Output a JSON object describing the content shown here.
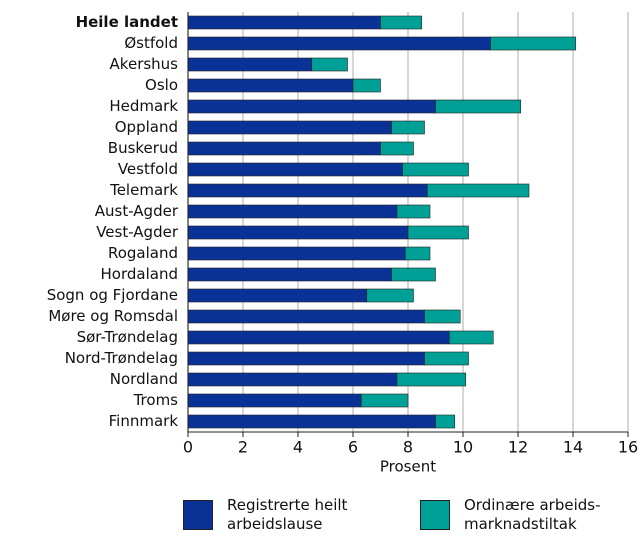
{
  "chart_data": {
    "type": "stacked_barh",
    "x_label": "Prosent",
    "categories": [
      "Heile landet",
      "Østfold",
      "Akershus",
      "Oslo",
      "Hedmark",
      "Oppland",
      "Buskerud",
      "Vestfold",
      "Telemark",
      "Aust-Agder",
      "Vest-Agder",
      "Rogaland",
      "Hordaland",
      "Sogn og Fjordane",
      "Møre og Romsdal",
      "Sør-Trøndelag",
      "Nord-Trøndelag",
      "Nordland",
      "Troms",
      "Finnmark"
    ],
    "series": [
      {
        "name": "Registrerte heilt arbeidslause",
        "color": "#0a3296",
        "values": [
          7.0,
          11.0,
          4.5,
          6.0,
          9.0,
          7.4,
          7.0,
          7.8,
          8.7,
          7.6,
          8.0,
          7.9,
          7.4,
          6.5,
          8.6,
          9.5,
          8.6,
          7.6,
          6.3,
          9.0
        ]
      },
      {
        "name": "Ordinære arbeids-marknadstiltak",
        "color": "#00a096",
        "values": [
          1.5,
          3.1,
          1.3,
          1.0,
          3.1,
          1.2,
          1.2,
          2.4,
          3.7,
          1.2,
          2.2,
          0.9,
          1.6,
          1.7,
          1.3,
          1.6,
          1.6,
          2.5,
          1.7,
          0.7
        ]
      }
    ],
    "xlim": [
      0,
      16
    ],
    "xticks": [
      0,
      2,
      4,
      6,
      8,
      10,
      12,
      14,
      16
    ],
    "grid": true
  }
}
